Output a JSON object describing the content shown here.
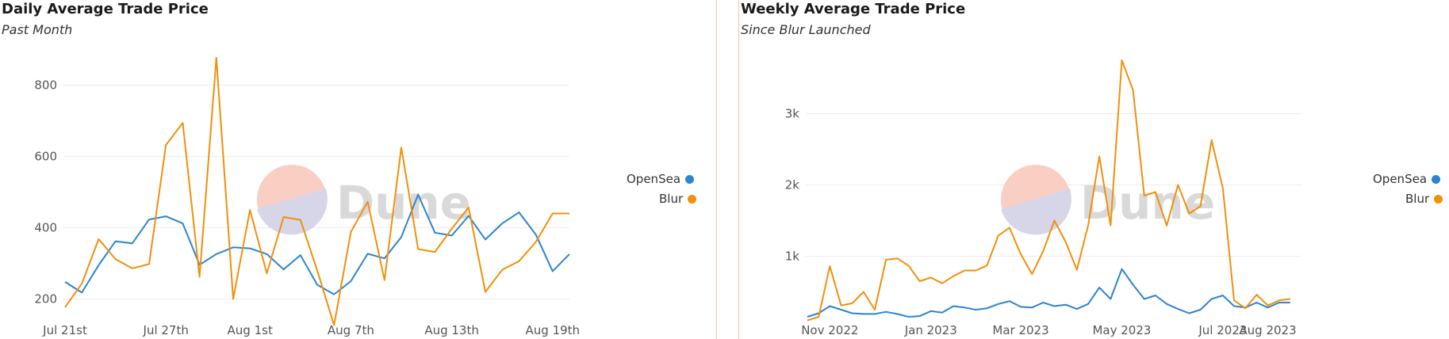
{
  "colors": {
    "opensea": "#2d84d0",
    "blur": "#f0900c",
    "grid": "#ececec",
    "axis_text": "#555555",
    "divider": "#f2c2b8",
    "watermark_text": "#d9d9d9",
    "watermark_pink": "#f9cfc4",
    "watermark_lavender": "#d6d6e8"
  },
  "watermark": {
    "text": "Dune"
  },
  "legend": {
    "items": [
      {
        "label": "OpenSea",
        "color": "#2d84d0"
      },
      {
        "label": "Blur",
        "color": "#f0900c"
      }
    ]
  },
  "chart_data": [
    {
      "type": "line",
      "title": "Daily Average Trade Price",
      "subtitle": "Past Month",
      "xlabel": "",
      "ylabel": "",
      "x_ticks": [
        {
          "x": 0,
          "label": "Jul 21st"
        },
        {
          "x": 6,
          "label": "Jul 27th"
        },
        {
          "x": 11,
          "label": "Aug 1st"
        },
        {
          "x": 17,
          "label": "Aug 7th"
        },
        {
          "x": 23,
          "label": "Aug 13th"
        },
        {
          "x": 29,
          "label": "Aug 19th"
        }
      ],
      "xlim": [
        0,
        30
      ],
      "y_ticks": [
        200,
        400,
        600,
        800
      ],
      "ylim": [
        110,
        910
      ],
      "grid": true,
      "legend_position": "right",
      "series": [
        {
          "name": "OpenSea",
          "color": "#2d84d0",
          "values": [
            248,
            218,
            295,
            362,
            356,
            423,
            432,
            412,
            296,
            326,
            345,
            342,
            326,
            283,
            323,
            240,
            213,
            250,
            327,
            314,
            374,
            493,
            386,
            378,
            433,
            367,
            412,
            443,
            381,
            278,
            326
          ]
        },
        {
          "name": "Blur",
          "color": "#f0900c",
          "values": [
            177,
            243,
            368,
            312,
            286,
            298,
            632,
            694,
            262,
            877,
            200,
            450,
            272,
            430,
            422,
            280,
            127,
            388,
            473,
            253,
            625,
            340,
            332,
            397,
            457,
            220,
            282,
            306,
            360,
            440,
            440
          ]
        }
      ]
    },
    {
      "type": "line",
      "title": "Weekly Average Trade Price",
      "subtitle": "Since Blur Launched",
      "xlabel": "",
      "ylabel": "",
      "x_ticks": [
        {
          "x": 2,
          "label": "Nov 2022"
        },
        {
          "x": 11,
          "label": "Jan 2023"
        },
        {
          "x": 19,
          "label": "Mar 2023"
        },
        {
          "x": 28,
          "label": "May 2023"
        },
        {
          "x": 37,
          "label": "Jul 2023"
        },
        {
          "x": 41,
          "label": "Aug 2023"
        }
      ],
      "xlim": [
        0,
        44
      ],
      "y_ticks": [
        {
          "v": 1000,
          "label": "1k"
        },
        {
          "v": 2000,
          "label": "2k"
        },
        {
          "v": 3000,
          "label": "3k"
        }
      ],
      "ylim": [
        -50,
        3950
      ],
      "grid": true,
      "legend_position": "right",
      "series": [
        {
          "name": "OpenSea",
          "color": "#2d84d0",
          "values": [
            150,
            200,
            300,
            250,
            200,
            190,
            190,
            220,
            190,
            150,
            160,
            230,
            210,
            300,
            280,
            250,
            270,
            330,
            370,
            290,
            280,
            350,
            300,
            320,
            260,
            330,
            560,
            400,
            820,
            600,
            400,
            450,
            330,
            260,
            200,
            250,
            400,
            450,
            300,
            280,
            350,
            280,
            350,
            350
          ]
        },
        {
          "name": "Blur",
          "color": "#f0900c",
          "values": [
            100,
            150,
            860,
            310,
            340,
            500,
            250,
            950,
            970,
            870,
            650,
            700,
            620,
            720,
            800,
            800,
            870,
            1290,
            1400,
            1030,
            750,
            1070,
            1500,
            1200,
            810,
            1430,
            2400,
            1430,
            3750,
            3330,
            1850,
            1900,
            1430,
            2000,
            1600,
            1700,
            2630,
            1950,
            380,
            270,
            460,
            310,
            380,
            400
          ]
        }
      ]
    }
  ]
}
